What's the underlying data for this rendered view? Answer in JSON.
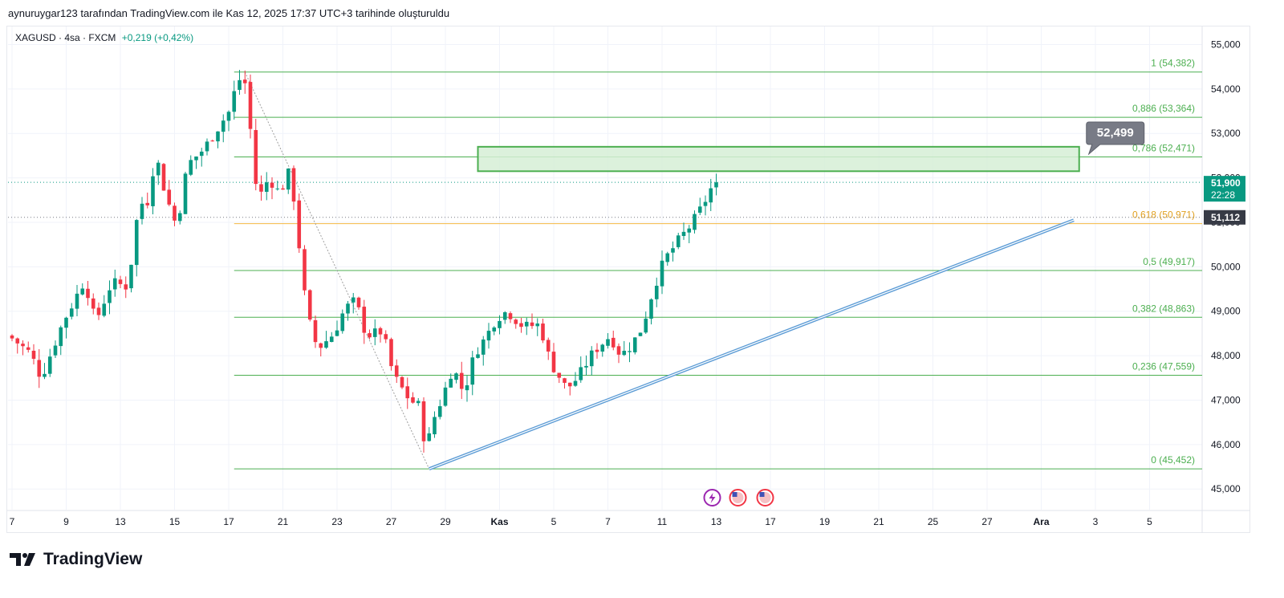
{
  "header": {
    "caption": "aynuruygar123 tarafından TradingView.com ile Kas 12, 2025 17:37 UTC+3 tarihinde oluşturuldu"
  },
  "symbol": {
    "name": "XAGUSD · 4sa · FXCM",
    "change": "+0,219 (+0,42%)"
  },
  "brand": {
    "name": "TradingView"
  },
  "colors": {
    "up": "#089981",
    "down": "#f23645",
    "fib": "#4caf50",
    "fib_gold": "#f5b942",
    "zone_fill": "#d6efd6",
    "zone_border": "#4caf50",
    "trend": "#2962ff",
    "price_badge": "#089981",
    "grey_badge": "#363a45",
    "grid": "#f0f3fa"
  },
  "chart_data": {
    "type": "candlestick",
    "title": "",
    "xlabel": "",
    "ylabel": "",
    "ylim": [
      44500,
      55500
    ],
    "y_ticks": [
      "55,000",
      "54,000",
      "53,000",
      "52,000",
      "51,000",
      "50,000",
      "49,000",
      "48,000",
      "47,000",
      "46,000",
      "45,000"
    ],
    "x_ticks": [
      {
        "label": "7",
        "bar": 0
      },
      {
        "label": "9",
        "bar": 10
      },
      {
        "label": "13",
        "bar": 20
      },
      {
        "label": "15",
        "bar": 30
      },
      {
        "label": "17",
        "bar": 40
      },
      {
        "label": "21",
        "bar": 50
      },
      {
        "label": "23",
        "bar": 60
      },
      {
        "label": "27",
        "bar": 70
      },
      {
        "label": "29",
        "bar": 80
      },
      {
        "label": "Kas",
        "bar": 90,
        "bold": true
      },
      {
        "label": "5",
        "bar": 100
      },
      {
        "label": "7",
        "bar": 110
      },
      {
        "label": "11",
        "bar": 120
      },
      {
        "label": "13",
        "bar": 130
      },
      {
        "label": "17",
        "bar": 140
      },
      {
        "label": "19",
        "bar": 150
      },
      {
        "label": "21",
        "bar": 160
      },
      {
        "label": "25",
        "bar": 170
      },
      {
        "label": "27",
        "bar": 180
      },
      {
        "label": "Ara",
        "bar": 190,
        "bold": true
      },
      {
        "label": "3",
        "bar": 200
      },
      {
        "label": "5",
        "bar": 210
      }
    ],
    "price_path": [
      [
        0,
        48450
      ],
      [
        4,
        48050
      ],
      [
        6,
        47500
      ],
      [
        10,
        48750
      ],
      [
        14,
        49700
      ],
      [
        16,
        48750
      ],
      [
        19,
        49650
      ],
      [
        22,
        49550
      ],
      [
        24,
        51400
      ],
      [
        26,
        51500
      ],
      [
        27,
        52600
      ],
      [
        29,
        51600
      ],
      [
        31,
        50900
      ],
      [
        33,
        52300
      ],
      [
        36,
        52650
      ],
      [
        39,
        53200
      ],
      [
        41,
        53550
      ],
      [
        42,
        54150
      ],
      [
        43,
        54250
      ],
      [
        44,
        54050
      ],
      [
        45,
        52450
      ],
      [
        46,
        51500
      ],
      [
        48,
        52000
      ],
      [
        50,
        51650
      ],
      [
        52,
        52200
      ],
      [
        55,
        48950
      ],
      [
        57,
        48150
      ],
      [
        60,
        48500
      ],
      [
        62,
        49050
      ],
      [
        64,
        49250
      ],
      [
        66,
        48450
      ],
      [
        69,
        48550
      ],
      [
        71,
        47550
      ],
      [
        74,
        47000
      ],
      [
        76,
        46850
      ],
      [
        77,
        45750
      ],
      [
        78,
        46450
      ],
      [
        80,
        47050
      ],
      [
        82,
        47750
      ],
      [
        84,
        47150
      ],
      [
        86,
        48050
      ],
      [
        88,
        48400
      ],
      [
        90,
        48850
      ],
      [
        92,
        49000
      ],
      [
        95,
        48650
      ],
      [
        98,
        48700
      ],
      [
        100,
        47850
      ],
      [
        103,
        47250
      ],
      [
        105,
        47500
      ],
      [
        108,
        48100
      ],
      [
        111,
        48450
      ],
      [
        113,
        48000
      ],
      [
        115,
        48250
      ],
      [
        117,
        48650
      ],
      [
        119,
        49500
      ],
      [
        121,
        50150
      ],
      [
        124,
        50650
      ],
      [
        126,
        50950
      ],
      [
        128,
        51350
      ],
      [
        130,
        51850
      ]
    ],
    "current_price": "51,900",
    "countdown": "22:28",
    "crosshair_price": "51,112",
    "fib_levels": [
      {
        "label": "1 (54,382)",
        "value": 54382
      },
      {
        "label": "0,886 (53,364)",
        "value": 53364
      },
      {
        "label": "0,786 (52,471)",
        "value": 52471
      },
      {
        "label": "0,618 (50,971)",
        "value": 50971,
        "gold": true
      },
      {
        "label": "0,5 (49,917)",
        "value": 49917
      },
      {
        "label": "0,382 (48,863)",
        "value": 48863
      },
      {
        "label": "0,236 (47,559)",
        "value": 47559
      },
      {
        "label": "0 (45,452)",
        "value": 45452
      }
    ],
    "fib_start_bar": 41,
    "fib_end_bar": 221,
    "fib_anchor": {
      "from_bar": 43,
      "from": 54382,
      "to_bar": 77,
      "to": 45452
    },
    "target_zone": {
      "from_bar": 86,
      "to_bar": 197,
      "high": 52700,
      "low": 52150
    },
    "target_callout": "52,499",
    "trendline": {
      "from_bar": 77,
      "from": 45452,
      "to_bar": 196,
      "to": 51050
    },
    "event_bar": 134
  }
}
